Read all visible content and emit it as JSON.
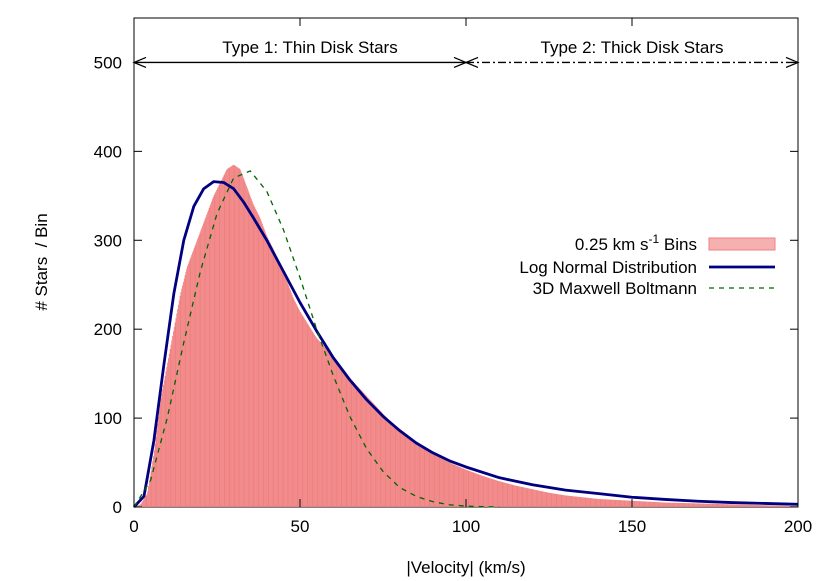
{
  "chart_data": {
    "type": "bar",
    "xlabel": "|Velocity| (km/s)",
    "ylabel": "# Stars  / Bin",
    "xlim": [
      0,
      200
    ],
    "ylim": [
      0,
      550
    ],
    "x_ticks": [
      0,
      50,
      100,
      150,
      200
    ],
    "y_ticks": [
      0,
      100,
      200,
      300,
      400,
      500
    ],
    "grid": false,
    "legend_position": "right",
    "series": [
      {
        "name": "0.25 km s-1 Bins",
        "kind": "histogram",
        "bin_width": 0.25,
        "color": "#f08080",
        "x": [
          0,
          2,
          4,
          6,
          8,
          10,
          12,
          14,
          16,
          18,
          20,
          22,
          24,
          26,
          28,
          30,
          32,
          34,
          36,
          38,
          40,
          42,
          44,
          46,
          48,
          50,
          55,
          60,
          65,
          70,
          75,
          80,
          85,
          90,
          95,
          100,
          105,
          110,
          115,
          120,
          125,
          130,
          135,
          140,
          145,
          150,
          160,
          170,
          180,
          190,
          200
        ],
        "values": [
          0,
          3,
          15,
          60,
          120,
          160,
          200,
          240,
          270,
          290,
          310,
          330,
          350,
          365,
          380,
          385,
          380,
          360,
          340,
          325,
          305,
          290,
          270,
          255,
          235,
          220,
          190,
          170,
          145,
          125,
          105,
          85,
          70,
          60,
          50,
          42,
          35,
          29,
          24,
          20,
          16,
          13,
          11,
          9,
          8,
          7,
          5,
          4,
          3,
          2,
          1
        ]
      },
      {
        "name": "Log Normal Distribution",
        "kind": "line",
        "color": "#000080",
        "x": [
          0,
          3,
          6,
          9,
          12,
          15,
          18,
          21,
          24,
          27,
          30,
          33,
          36,
          40,
          45,
          50,
          55,
          60,
          65,
          70,
          75,
          80,
          85,
          90,
          95,
          100,
          110,
          120,
          130,
          140,
          150,
          160,
          170,
          180,
          190,
          200
        ],
        "values": [
          0,
          12,
          75,
          160,
          240,
          300,
          338,
          358,
          366,
          365,
          358,
          343,
          325,
          300,
          265,
          230,
          198,
          168,
          143,
          121,
          102,
          86,
          72,
          61,
          52,
          45,
          33,
          25,
          19,
          15,
          11,
          8.5,
          6.5,
          5,
          4,
          3
        ]
      },
      {
        "name": "3D Maxwell Boltmann",
        "kind": "line",
        "dash": true,
        "color": "#006400",
        "x": [
          0,
          5,
          10,
          15,
          20,
          25,
          30,
          35,
          40,
          45,
          50,
          55,
          60,
          65,
          70,
          75,
          80,
          85,
          90,
          95,
          100,
          105,
          110
        ],
        "values": [
          0,
          30,
          100,
          185,
          265,
          330,
          370,
          378,
          355,
          312,
          258,
          200,
          148,
          102,
          66,
          40,
          22,
          12,
          6,
          2.5,
          1,
          0.4,
          0
        ]
      }
    ],
    "annotations": [
      {
        "text": "Type 1: Thin Disk Stars",
        "x_from": 0,
        "x_to": 100,
        "y": 500,
        "line": "solid"
      },
      {
        "text": "Type 2: Thick Disk Stars",
        "x_from": 100,
        "x_to": 200,
        "y": 500,
        "line": "dash-dot"
      }
    ]
  }
}
